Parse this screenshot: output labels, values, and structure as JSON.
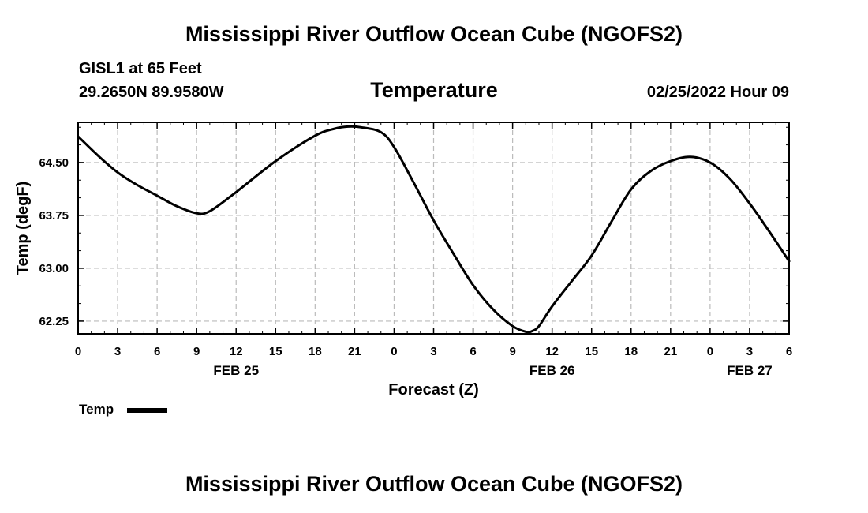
{
  "header": {
    "title": "Mississippi River Outflow Ocean Cube (NGOFS2)",
    "station": "GISL1 at 65 Feet",
    "coords": "29.2650N  89.9580W",
    "subtitle": "Temperature",
    "datetime": "02/25/2022 Hour 09"
  },
  "footer": {
    "title": "Mississippi River Outflow Ocean Cube (NGOFS2)"
  },
  "legend": {
    "label": "Temp"
  },
  "chart_data": {
    "type": "line",
    "title": "Temperature",
    "xlabel": "Forecast (Z)",
    "ylabel": "Temp (degF)",
    "xlim": [
      0,
      54
    ],
    "ylim": [
      62.07,
      65.07
    ],
    "grid": true,
    "x_ticks": [
      0,
      3,
      6,
      9,
      12,
      15,
      18,
      21,
      24,
      27,
      30,
      33,
      36,
      39,
      42,
      45,
      48,
      51,
      54
    ],
    "x_tick_labels": [
      "0",
      "3",
      "6",
      "9",
      "12",
      "15",
      "18",
      "21",
      "0",
      "3",
      "6",
      "9",
      "12",
      "15",
      "18",
      "21",
      "0",
      "3",
      "6"
    ],
    "y_ticks": [
      62.25,
      63.0,
      63.75,
      64.5
    ],
    "y_tick_labels": [
      "62.25",
      "63.00",
      "63.75",
      "64.50"
    ],
    "date_labels": [
      {
        "x": 12,
        "label": "FEB 25"
      },
      {
        "x": 36,
        "label": "FEB 26"
      },
      {
        "x": 51,
        "label": "FEB 27"
      }
    ],
    "series": [
      {
        "name": "Temp",
        "color": "#000000",
        "x": [
          0,
          1.5,
          3,
          4.5,
          6,
          7.5,
          9,
          10,
          12,
          15,
          18,
          19.5,
          20.5,
          21.5,
          23,
          24,
          25.5,
          27,
          28.5,
          30,
          31.5,
          33,
          34,
          34.5,
          35,
          36,
          37.5,
          39,
          40.5,
          42,
          43.5,
          45,
          46.5,
          48,
          49.5,
          51,
          52.5,
          54
        ],
        "values": [
          64.87,
          64.6,
          64.36,
          64.18,
          64.03,
          63.88,
          63.78,
          63.81,
          64.08,
          64.52,
          64.88,
          64.98,
          65.01,
          65.0,
          64.93,
          64.72,
          64.21,
          63.68,
          63.21,
          62.76,
          62.42,
          62.18,
          62.1,
          62.11,
          62.18,
          62.46,
          62.82,
          63.18,
          63.66,
          64.12,
          64.38,
          64.52,
          64.58,
          64.5,
          64.27,
          63.92,
          63.52,
          63.1
        ]
      }
    ]
  }
}
